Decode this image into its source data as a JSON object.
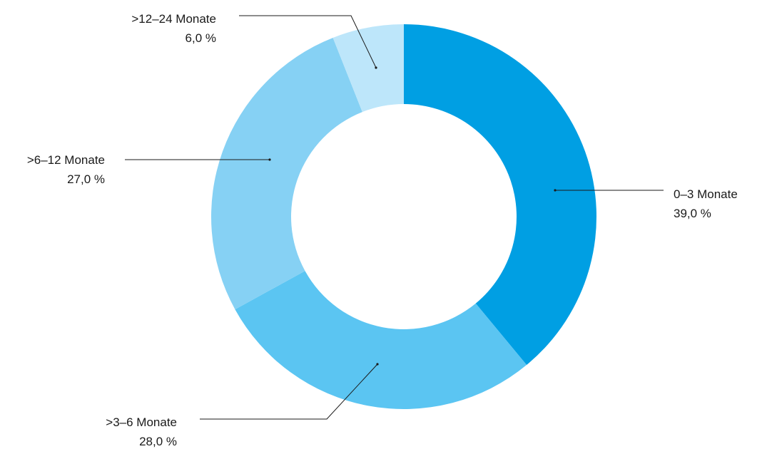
{
  "chart_data": {
    "type": "pie",
    "variant": "donut",
    "categories": [
      "0–3 Monate",
      ">3–6 Monate",
      ">6–12 Monate",
      ">12–24 Monate"
    ],
    "values": [
      39.0,
      28.0,
      27.0,
      6.0
    ],
    "value_labels": [
      "39,0 %",
      "28,0 %",
      "27,0 %",
      "6,0 %"
    ],
    "colors": [
      "#009fe3",
      "#5bc5f2",
      "#86d1f4",
      "#bde6fa"
    ],
    "start": "top",
    "direction": "clockwise",
    "legend": "none",
    "title": ""
  }
}
